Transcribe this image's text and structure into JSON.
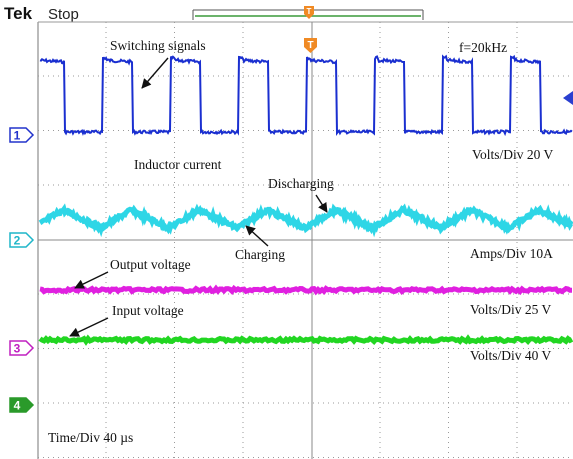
{
  "header": {
    "brand": "Tek",
    "status": "Stop"
  },
  "channels": [
    "1",
    "2",
    "3",
    "4"
  ],
  "annotations": {
    "switching_signals": "Switching signals",
    "frequency": "f=20kHz",
    "inductor_current": "Inductor current",
    "discharging": "Discharging",
    "charging": "Charging",
    "output_voltage": "Output voltage",
    "input_voltage": "Input voltage"
  },
  "scales": {
    "ch1": "Volts/Div 20 V",
    "ch2": "Amps/Div 10A",
    "ch3": "Volts/Div 25 V",
    "ch4": "Volts/Div 40 V",
    "time": "Time/Div 40 µs"
  }
}
